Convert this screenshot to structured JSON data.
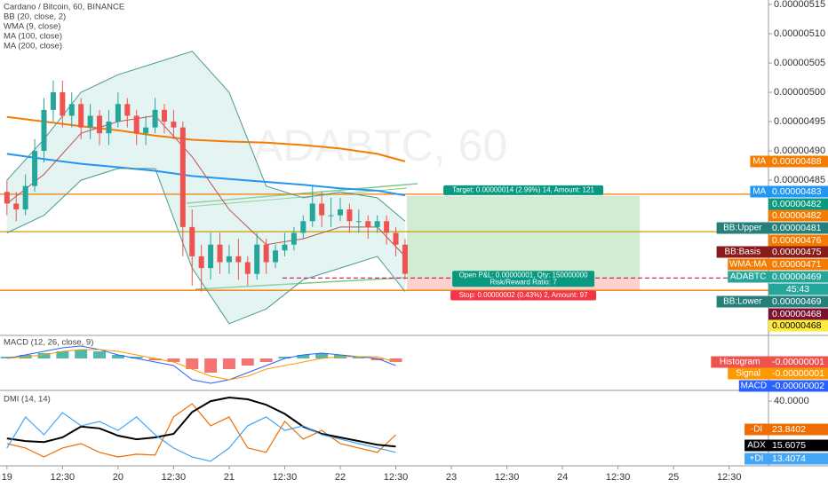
{
  "chart_data": [
    {
      "type": "candlestick",
      "title": "Cardano / Bitcoin, 60, BINANCE",
      "indicators": [
        "BB (20, close, 2)",
        "WMA (9, close)",
        "MA (100, close)",
        "MA (200, close)"
      ],
      "watermark": "ADABTC, 60",
      "x": [
        0,
        2,
        4,
        6,
        8,
        10,
        12,
        14,
        16,
        18,
        20,
        22,
        24,
        26,
        28,
        30,
        32,
        34,
        36,
        38,
        40,
        42,
        44,
        46,
        48,
        50,
        52,
        54,
        56,
        58,
        60,
        62,
        64,
        66,
        68,
        70,
        72,
        74,
        76,
        78,
        80,
        82,
        84,
        86
      ],
      "candles": {
        "open": [
          4.83e-06,
          4.81e-06,
          4.8e-06,
          4.84e-06,
          4.9e-06,
          4.97e-06,
          5e-06,
          4.96e-06,
          4.98e-06,
          4.94e-06,
          4.96e-06,
          4.93e-06,
          4.95e-06,
          4.98e-06,
          4.96e-06,
          4.93e-06,
          4.94e-06,
          4.97e-06,
          4.95e-06,
          4.94e-06,
          4.77e-06,
          4.72e-06,
          4.7e-06,
          4.74e-06,
          4.71e-06,
          4.72e-06,
          4.71e-06,
          4.69e-06,
          4.74e-06,
          4.71e-06,
          4.73e-06,
          4.74e-06,
          4.76e-06,
          4.78e-06,
          4.81e-06,
          4.79e-06,
          4.79e-06,
          4.8e-06,
          4.78e-06,
          4.78e-06,
          4.77e-06,
          4.78e-06,
          4.76e-06,
          4.74e-06
        ],
        "high": [
          4.85e-06,
          4.83e-06,
          4.86e-06,
          4.92e-06,
          4.99e-06,
          5.02e-06,
          5.02e-06,
          5e-06,
          4.99e-06,
          4.98e-06,
          4.97e-06,
          4.97e-06,
          5e-06,
          4.99e-06,
          4.97e-06,
          4.96e-06,
          4.99e-06,
          4.98e-06,
          4.97e-06,
          4.95e-06,
          4.8e-06,
          4.74e-06,
          4.76e-06,
          4.76e-06,
          4.74e-06,
          4.75e-06,
          4.72e-06,
          4.76e-06,
          4.75e-06,
          4.74e-06,
          4.76e-06,
          4.77e-06,
          4.79e-06,
          4.84e-06,
          4.83e-06,
          4.82e-06,
          4.82e-06,
          4.81e-06,
          4.8e-06,
          4.79e-06,
          4.79e-06,
          4.79e-06,
          4.77e-06,
          4.75e-06
        ],
        "low": [
          4.79e-06,
          4.78e-06,
          4.79e-06,
          4.83e-06,
          4.88e-06,
          4.95e-06,
          4.94e-06,
          4.94e-06,
          4.92e-06,
          4.92e-06,
          4.91e-06,
          4.91e-06,
          4.94e-06,
          4.94e-06,
          4.91e-06,
          4.91e-06,
          4.93e-06,
          4.93e-06,
          4.92e-06,
          4.72e-06,
          4.67e-06,
          4.66e-06,
          4.68e-06,
          4.69e-06,
          4.69e-06,
          4.68e-06,
          4.67e-06,
          4.68e-06,
          4.69e-06,
          4.7e-06,
          4.72e-06,
          4.73e-06,
          4.75e-06,
          4.77e-06,
          4.77e-06,
          4.77e-06,
          4.78e-06,
          4.76e-06,
          4.76e-06,
          4.75e-06,
          4.76e-06,
          4.74e-06,
          4.72e-06,
          4.68e-06
        ],
        "close": [
          4.81e-06,
          4.8e-06,
          4.84e-06,
          4.9e-06,
          4.97e-06,
          5e-06,
          4.96e-06,
          4.98e-06,
          4.94e-06,
          4.96e-06,
          4.93e-06,
          4.95e-06,
          4.98e-06,
          4.96e-06,
          4.93e-06,
          4.94e-06,
          4.97e-06,
          4.95e-06,
          4.94e-06,
          4.77e-06,
          4.72e-06,
          4.7e-06,
          4.74e-06,
          4.71e-06,
          4.72e-06,
          4.71e-06,
          4.69e-06,
          4.74e-06,
          4.71e-06,
          4.73e-06,
          4.74e-06,
          4.76e-06,
          4.78e-06,
          4.81e-06,
          4.79e-06,
          4.79e-06,
          4.8e-06,
          4.78e-06,
          4.78e-06,
          4.77e-06,
          4.78e-06,
          4.76e-06,
          4.74e-06,
          4.69e-06
        ]
      },
      "up_color": "#26a69a",
      "down_color": "#ef5350",
      "series": [
        {
          "color": "#2196f3",
          "x": [
            0,
            8,
            16,
            24,
            32,
            40,
            48,
            56,
            64,
            72,
            80,
            86
          ],
          "values": [
            4.895e-06,
            4.886e-06,
            4.878e-06,
            4.872e-06,
            4.866e-06,
            4.857e-06,
            4.852e-06,
            4.847e-06,
            4.842e-06,
            4.836e-06,
            4.832e-06,
            4.824e-06
          ]
        },
        {
          "color": "#f57c00",
          "x": [
            0,
            8,
            16,
            24,
            32,
            40,
            48,
            56,
            64,
            72,
            80,
            86
          ],
          "values": [
            4.958e-06,
            4.95e-06,
            4.942e-06,
            4.935e-06,
            4.926e-06,
            4.919e-06,
            4.916e-06,
            4.914e-06,
            4.91e-06,
            4.904e-06,
            4.895e-06,
            4.882e-06
          ]
        },
        {
          "color": "#4a9a8e",
          "x": [
            0,
            8,
            16,
            24,
            32,
            40,
            48,
            56,
            64,
            72,
            80,
            86
          ],
          "values": [
            4.85e-06,
            4.92e-06,
            5e-06,
            5.03e-06,
            5.05e-06,
            5.07e-06,
            5e-06,
            4.84e-06,
            4.82e-06,
            4.83e-06,
            4.82e-06,
            4.78e-06
          ]
        },
        {
          "color": "#4a9a8e",
          "x": [
            0,
            8,
            16,
            24,
            32,
            40,
            48,
            56,
            64,
            72,
            80,
            86
          ],
          "values": [
            4.76e-06,
            4.79e-06,
            4.85e-06,
            4.87e-06,
            4.87e-06,
            4.7e-06,
            4.605e-06,
            4.63e-06,
            4.68e-06,
            4.7e-06,
            4.72e-06,
            4.66e-06
          ]
        },
        {
          "color": "#c0504d",
          "x": [
            0,
            8,
            16,
            24,
            32,
            40,
            48,
            56,
            64,
            72,
            80,
            86
          ],
          "values": [
            4.81e-06,
            4.86e-06,
            4.93e-06,
            4.95e-06,
            4.96e-06,
            4.89e-06,
            4.8e-06,
            4.74e-06,
            4.75e-06,
            4.77e-06,
            4.77e-06,
            4.72e-06
          ]
        }
      ],
      "band_color": "#b2dfdb",
      "hlines": [
        {
          "value": 4.826e-06,
          "color": "#f57c00"
        },
        {
          "value": 4.762e-06,
          "color": "#c8a000"
        },
        {
          "value": 4.662e-06,
          "color": "#f57c00"
        }
      ],
      "position": {
        "x_start": 86.4,
        "x_end": 136.7,
        "entry": 4.683e-06,
        "target": 4.823e-06,
        "stop": 4.663e-06,
        "target_label": "Target: 0.00000014 (2.99%) 14, Amount: 121",
        "pnl_label": "Open P&L: 0.00000001, Qty: 150000000",
        "ratio_label": "Risk/Reward Ratio: 7",
        "stop_label": "Stop: 0.00000002 (0.43%) 2, Amount: 97"
      },
      "ylim": [
        4.585e-06,
        5.1576e-06
      ],
      "yticks": [
        {
          "value": 5.15e-06,
          "label": "0.00000515"
        },
        {
          "value": 5.1e-06,
          "label": "0.00000510"
        },
        {
          "value": 5.05e-06,
          "label": "0.00000505"
        },
        {
          "value": 5e-06,
          "label": "0.00000500"
        },
        {
          "value": 4.95e-06,
          "label": "0.00000495"
        },
        {
          "value": 4.9e-06,
          "label": "0.00000490"
        },
        {
          "value": 4.85e-06,
          "label": "0.00000485"
        }
      ],
      "xlim": [
        -1.5,
        164.5
      ],
      "xticks": [
        {
          "value": 0,
          "label": "19"
        },
        {
          "value": 12,
          "label": "12:30"
        },
        {
          "value": 24,
          "label": "20"
        },
        {
          "value": 36,
          "label": "12:30"
        },
        {
          "value": 48,
          "label": "21"
        },
        {
          "value": 60,
          "label": "12:30"
        },
        {
          "value": 72,
          "label": "22"
        },
        {
          "value": 84,
          "label": "12:30"
        },
        {
          "value": 96,
          "label": "23"
        },
        {
          "value": 108,
          "label": "12:30"
        },
        {
          "value": 120,
          "label": "24"
        },
        {
          "value": 132,
          "label": "12:30"
        },
        {
          "value": 144,
          "label": "25"
        },
        {
          "value": 156,
          "label": "12:30"
        }
      ],
      "tags": [
        {
          "name": "MA",
          "label": "0.00000488",
          "color": "#f57c00"
        },
        {
          "name": "MA",
          "label": "0.00000483",
          "color": "#2196f3"
        },
        {
          "label": "0.00000482",
          "color": "#089981"
        },
        {
          "label": "0.00000482",
          "color": "#f57c00"
        },
        {
          "name": "BB:Upper",
          "label": "0.00000481",
          "color": "#26807a"
        },
        {
          "label": "0.00000476",
          "color": "#f57c00"
        },
        {
          "name": "BB:Basis",
          "label": "0.00000475",
          "color": "#8b1a1a"
        },
        {
          "name": "WMA:MA",
          "label": "0.00000471",
          "color": "#f57c00"
        },
        {
          "name": "ADABTC",
          "label": "0.00000469",
          "color": "#26a69a"
        },
        {
          "name": "BB:Lower",
          "label": "0.00000469",
          "color": "#26807a"
        },
        {
          "label": "0.00000468",
          "color": "#7b1030"
        },
        {
          "label": "0.00000468",
          "color": "#ffeb3b"
        }
      ],
      "countdown": "45:43"
    },
    {
      "type": "bar",
      "title": "MACD (12, 26, close, 9)",
      "x": [
        0,
        4,
        8,
        12,
        16,
        20,
        24,
        28,
        32,
        36,
        40,
        44,
        48,
        52,
        56,
        60,
        64,
        68,
        72,
        76,
        80,
        84
      ],
      "values": [
        5e-09,
        1e-08,
        1.5e-08,
        2e-08,
        2.5e-08,
        2e-08,
        1e-08,
        5e-09,
        -5e-09,
        -1e-08,
        -3e-08,
        -4e-08,
        -3e-08,
        -2e-08,
        -1e-08,
        5e-09,
        1e-08,
        1.5e-08,
        1e-08,
        5e-09,
        -5e-09,
        -1e-08
      ],
      "up_color": "#26a69a",
      "down_color": "#ef5350",
      "series": [
        {
          "color": "#2962ff",
          "values": [
            0,
            1e-08,
            2e-08,
            3e-08,
            3.5e-08,
            2.5e-08,
            1e-08,
            0,
            -1e-08,
            -2e-08,
            -6e-08,
            -7e-08,
            -6e-08,
            -4e-08,
            -2e-08,
            0,
            1e-08,
            1.5e-08,
            1e-08,
            5e-09,
            0,
            -2e-08
          ]
        },
        {
          "color": "#ff9800",
          "values": [
            0,
            5e-09,
            1e-08,
            2e-08,
            2.5e-08,
            2.5e-08,
            2e-08,
            1e-08,
            0,
            -1e-08,
            -3e-08,
            -5e-08,
            -6e-08,
            -5e-08,
            -3e-08,
            -2e-08,
            -1e-08,
            0,
            5e-09,
            5e-09,
            5e-09,
            -1e-08
          ]
        }
      ],
      "ylim": [
        -9e-08,
        6.5e-08
      ],
      "tags": [
        {
          "name": "Histogram",
          "label": "-0.00000001",
          "color": "#ef5350"
        },
        {
          "name": "Signal",
          "label": "-0.00000001",
          "color": "#ff9800"
        },
        {
          "name": "MACD",
          "label": "-0.00000002",
          "color": "#2962ff"
        }
      ]
    },
    {
      "type": "line",
      "title": "DMI (14, 14)",
      "x": [
        0,
        4,
        8,
        12,
        16,
        20,
        24,
        28,
        32,
        36,
        40,
        44,
        48,
        52,
        56,
        60,
        64,
        68,
        72,
        76,
        80,
        84
      ],
      "series": [
        {
          "color": "#ef6c00",
          "values": [
            16.6,
            14.2,
            9.3,
            14.2,
            16.6,
            11.8,
            9.3,
            10.8,
            10.3,
            31.3,
            38.6,
            26.4,
            31.3,
            14.2,
            11.8,
            28.9,
            19.1,
            23.9,
            16.6,
            14.2,
            11.8,
            21.5
          ]
        },
        {
          "color": "#000000",
          "values": [
            19.5,
            18.0,
            17.5,
            20.0,
            26.0,
            25.0,
            21.0,
            19.0,
            20.0,
            22.0,
            34.0,
            40.0,
            42.0,
            41.0,
            38.0,
            33.0,
            26.0,
            22.0,
            20.0,
            18.0,
            16.0,
            15.0
          ]
        },
        {
          "color": "#42a5f5",
          "values": [
            14.2,
            31.3,
            21.5,
            33.7,
            26.4,
            28.8,
            23.9,
            31.3,
            21.5,
            14.2,
            9.3,
            6.9,
            14.2,
            26.4,
            31.3,
            23.9,
            26.4,
            21.5,
            19.1,
            16.6,
            14.2,
            11.8
          ]
        }
      ],
      "ylim": [
        4.4,
        45.9
      ],
      "yticks": [
        {
          "value": 40,
          "label": "40.0000"
        }
      ],
      "tags": [
        {
          "name": "-DI",
          "label": "23.8402",
          "color": "#ef6c00"
        },
        {
          "name": "ADX",
          "label": "15.6075",
          "color": "#000000"
        },
        {
          "name": "+DI",
          "label": "13.4074",
          "color": "#42a5f5"
        }
      ]
    }
  ]
}
